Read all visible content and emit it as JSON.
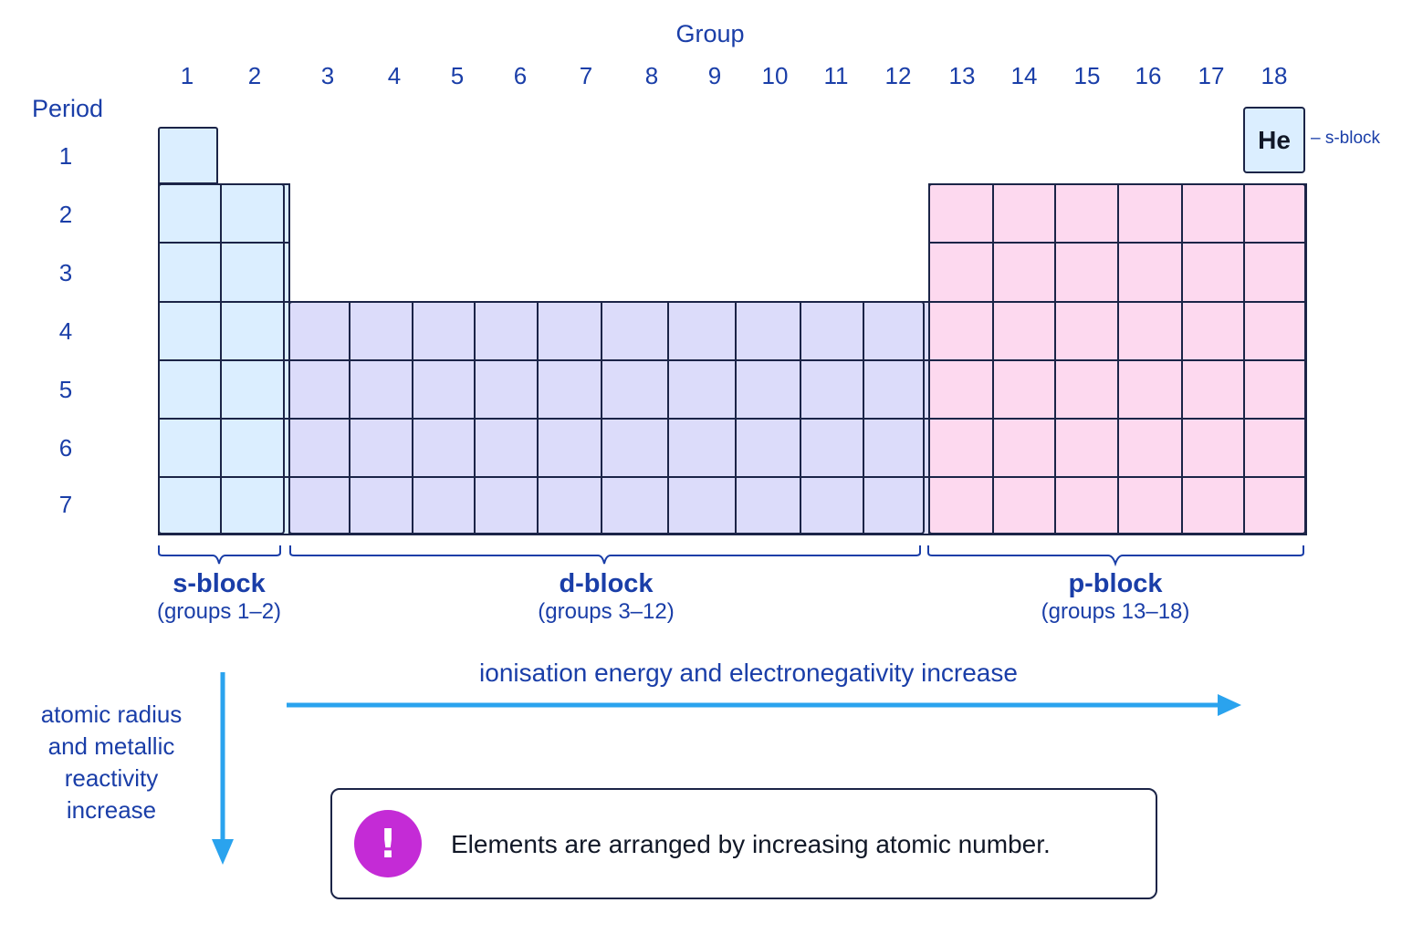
{
  "header": {
    "group_label": "Group",
    "period_label": "Period"
  },
  "groups": [
    "1",
    "2",
    "3",
    "4",
    "5",
    "6",
    "7",
    "8",
    "9",
    "10",
    "11",
    "12",
    "13",
    "14",
    "15",
    "16",
    "17",
    "18"
  ],
  "periods": [
    "1",
    "2",
    "3",
    "4",
    "5",
    "6",
    "7"
  ],
  "helium": {
    "symbol": "He",
    "annotation": "– s-block"
  },
  "blocks": [
    {
      "id": "s",
      "title": "s-block",
      "subtitle": "(groups 1–2)",
      "color": "#dbeeff"
    },
    {
      "id": "d",
      "title": "d-block",
      "subtitle": "(groups 3–12)",
      "color": "#dcdcfa"
    },
    {
      "id": "p",
      "title": "p-block",
      "subtitle": "(groups 13–18)",
      "color": "#fdd9ef"
    }
  ],
  "trends": {
    "horizontal": "ionisation energy and electronegativity increase",
    "vertical_lines": [
      "atomic radius",
      "and metallic",
      "reactivity",
      "increase"
    ],
    "arrow_color": "#2aa3ee"
  },
  "note": {
    "icon": "exclamation-icon",
    "text": "Elements are arranged by increasing atomic number."
  }
}
